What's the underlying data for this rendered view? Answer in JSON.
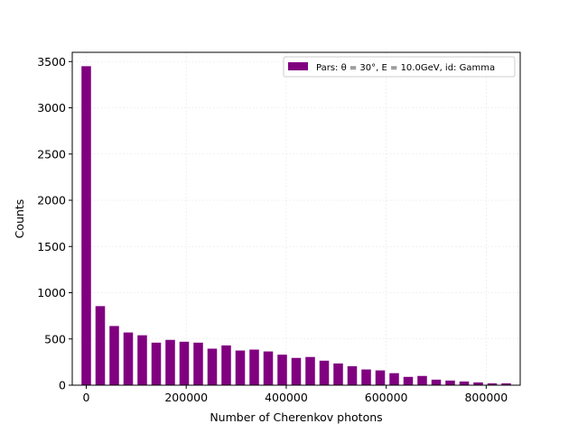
{
  "chart_data": {
    "type": "bar",
    "xlabel": "Number of Cherenkov photons",
    "ylabel": "Counts",
    "xlim": [
      -28000,
      868000
    ],
    "ylim": [
      0,
      3600
    ],
    "grid": true,
    "legend_position": "top-right",
    "bar_width": 19000,
    "x_ticks": [
      {
        "value": 0,
        "label": "0"
      },
      {
        "value": 200000,
        "label": "200000"
      },
      {
        "value": 400000,
        "label": "400000"
      },
      {
        "value": 600000,
        "label": "600000"
      },
      {
        "value": 800000,
        "label": "800000"
      }
    ],
    "y_ticks": [
      {
        "value": 0,
        "label": "0"
      },
      {
        "value": 500,
        "label": "500"
      },
      {
        "value": 1000,
        "label": "1000"
      },
      {
        "value": 1500,
        "label": "1500"
      },
      {
        "value": 2000,
        "label": "2000"
      },
      {
        "value": 2500,
        "label": "2500"
      },
      {
        "value": 3000,
        "label": "3000"
      },
      {
        "value": 3500,
        "label": "3500"
      }
    ],
    "series": [
      {
        "name": "Pars: θ = 30°, E = 10.0GeV, id: Gamma",
        "color": "#800080",
        "x": [
          0,
          28000,
          56000,
          84000,
          112000,
          140000,
          168000,
          196000,
          224000,
          252000,
          280000,
          308000,
          336000,
          364000,
          392000,
          420000,
          448000,
          476000,
          504000,
          532000,
          560000,
          588000,
          616000,
          644000,
          672000,
          700000,
          728000,
          756000,
          784000,
          812000,
          840000
        ],
        "values": [
          3450,
          855,
          640,
          570,
          540,
          460,
          490,
          470,
          460,
          395,
          430,
          375,
          385,
          365,
          330,
          295,
          305,
          265,
          235,
          205,
          170,
          160,
          130,
          90,
          100,
          60,
          50,
          40,
          30,
          20,
          20
        ]
      }
    ]
  }
}
